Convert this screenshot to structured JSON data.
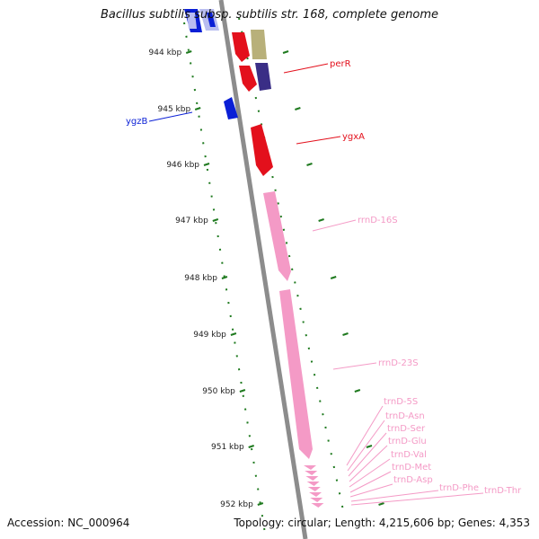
{
  "title": "Bacillus subtilis subsp. subtilis str. 168, complete genome",
  "accession": "Accession: NC_000964",
  "summary": "Topology: circular; Length: 4,215,606 bp; Genes: 4,353",
  "colors": {
    "backbone": "#8c8c8c",
    "ruler_ticks": "#1f7a1f",
    "blue_gene": "#0a1fd6",
    "lightblue_gene": "#b9bdf0",
    "red_gene": "#e3101c",
    "olive_gene": "#b8b07a",
    "navy_gene": "#3a2e86",
    "pink_rna": "#f49ac6"
  },
  "ruler": [
    "944 kbp",
    "945 kbp",
    "946 kbp",
    "947 kbp",
    "948 kbp",
    "949 kbp",
    "950 kbp",
    "951 kbp",
    "952 kbp"
  ],
  "labels": [
    {
      "text": "perR",
      "color": "#e3101c"
    },
    {
      "text": "ygzB",
      "color": "#0a1fd6"
    },
    {
      "text": "ygxA",
      "color": "#e3101c"
    },
    {
      "text": "rrnD-16S",
      "color": "#f49ac6"
    },
    {
      "text": "rrnD-23S",
      "color": "#f49ac6"
    },
    {
      "text": "trnD-5S",
      "color": "#f49ac6"
    },
    {
      "text": "trnD-Asn",
      "color": "#f49ac6"
    },
    {
      "text": "trnD-Ser",
      "color": "#f49ac6"
    },
    {
      "text": "trnD-Glu",
      "color": "#f49ac6"
    },
    {
      "text": "trnD-Val",
      "color": "#f49ac6"
    },
    {
      "text": "trnD-Met",
      "color": "#f49ac6"
    },
    {
      "text": "trnD-Asp",
      "color": "#f49ac6"
    },
    {
      "text": "trnD-Phe",
      "color": "#f49ac6"
    },
    {
      "text": "trnD-Thr",
      "color": "#f49ac6"
    }
  ]
}
